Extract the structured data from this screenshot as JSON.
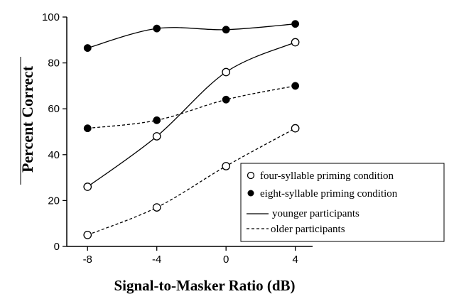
{
  "chart_data": {
    "type": "scatter",
    "xlabel": "Signal-to-Masker Ratio (dB)",
    "ylabel": "Percent Correct",
    "x_ticks": [
      -8,
      -4,
      0,
      4
    ],
    "y_ticks": [
      0,
      20,
      40,
      60,
      80,
      100
    ],
    "xlim": [
      -9.2,
      5
    ],
    "ylim": [
      0,
      100
    ],
    "grid": false,
    "legend_position": "bottom-right",
    "legend": [
      {
        "marker": "open-circle",
        "label": "four-syllable priming condition"
      },
      {
        "marker": "filled-circle",
        "label": "eight-syllable priming condition"
      },
      {
        "line": "solid",
        "label": "younger participants"
      },
      {
        "line": "dashed",
        "label": "older participants"
      }
    ],
    "series": [
      {
        "marker": "filled",
        "line": "solid",
        "x": [
          -8,
          -4,
          0,
          4
        ],
        "values": [
          86.5,
          95,
          94.5,
          97
        ]
      },
      {
        "marker": "filled",
        "line": "dashed",
        "x": [
          -8,
          -4,
          0,
          4
        ],
        "values": [
          51.5,
          55,
          64,
          70
        ]
      },
      {
        "marker": "open",
        "line": "solid",
        "x": [
          -8,
          -4,
          0,
          4
        ],
        "values": [
          26,
          48,
          76,
          89
        ]
      },
      {
        "marker": "open",
        "line": "dashed",
        "x": [
          -8,
          -4,
          0,
          4
        ],
        "values": [
          5,
          17,
          35,
          51.5
        ]
      }
    ]
  }
}
